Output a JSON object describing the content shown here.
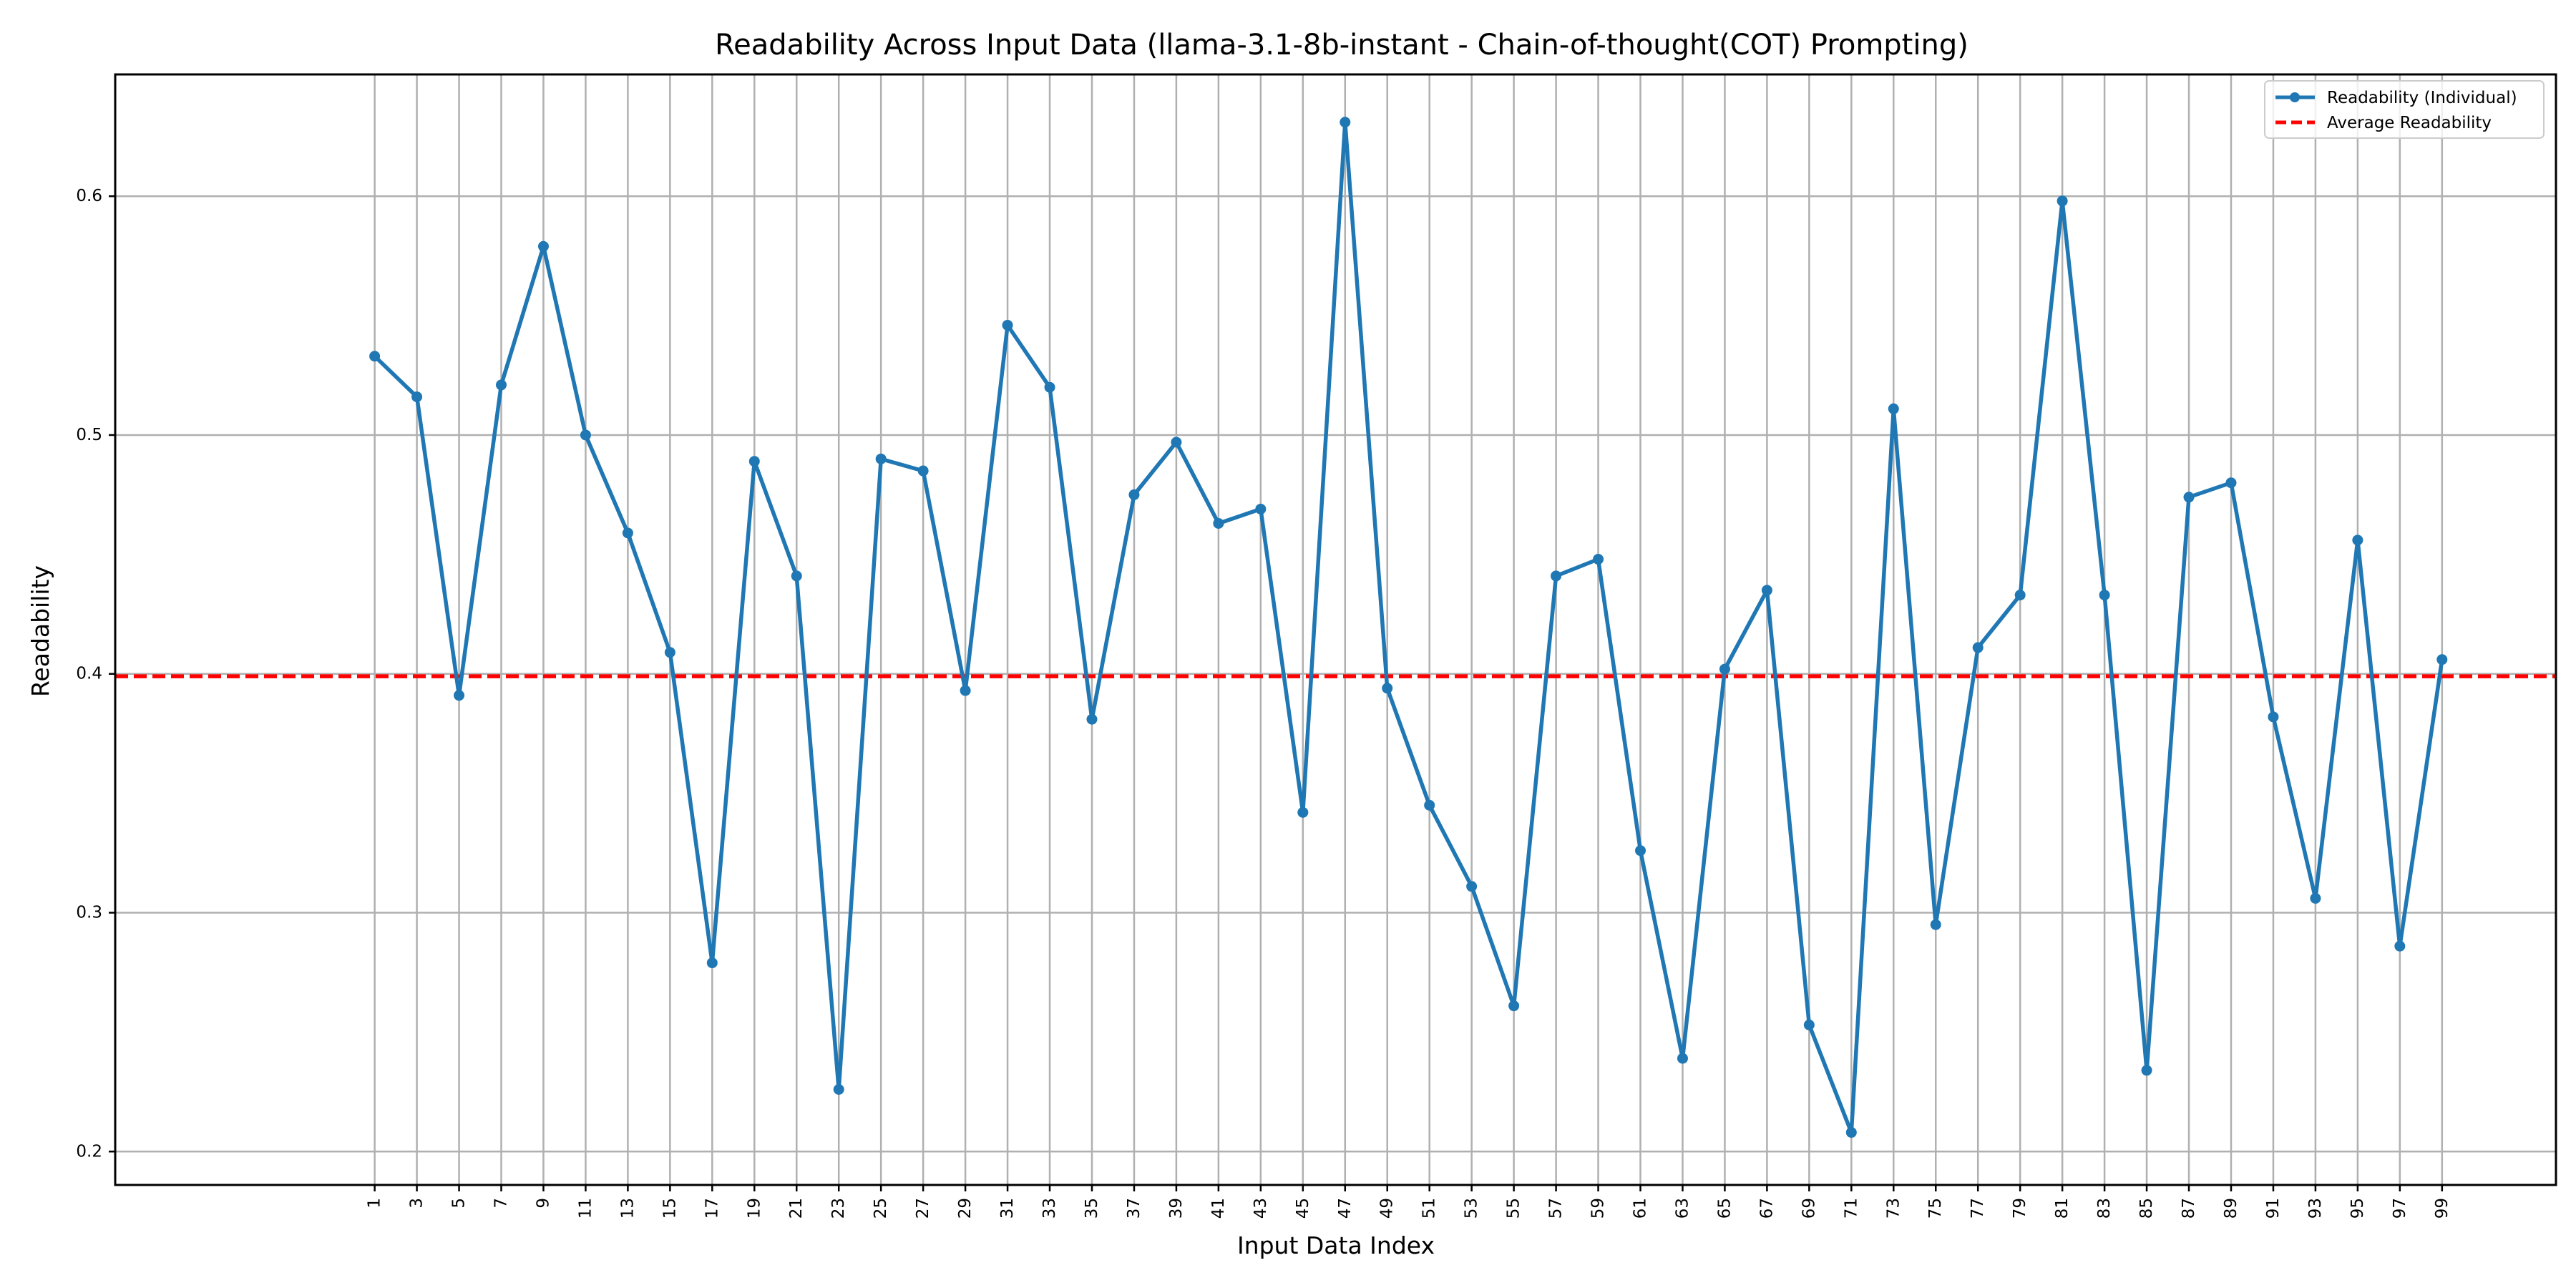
{
  "chart_data": {
    "type": "line",
    "title": "Readability Across Input Data (llama-3.1-8b-instant - Chain-of-thought(COT) Prompting)",
    "xlabel": "Input Data Index",
    "ylabel": "Readability",
    "x": [
      1,
      3,
      5,
      7,
      9,
      11,
      13,
      15,
      17,
      19,
      21,
      23,
      25,
      27,
      29,
      31,
      33,
      35,
      37,
      39,
      41,
      43,
      45,
      47,
      49,
      51,
      53,
      55,
      57,
      59,
      61,
      63,
      65,
      67,
      69,
      71,
      73,
      75,
      77,
      79,
      81,
      83,
      85,
      87,
      89,
      91,
      93,
      95,
      97,
      99
    ],
    "xticks": [
      "1",
      "3",
      "5",
      "7",
      "9",
      "11",
      "13",
      "15",
      "17",
      "19",
      "21",
      "23",
      "25",
      "27",
      "29",
      "31",
      "33",
      "35",
      "37",
      "39",
      "41",
      "43",
      "45",
      "47",
      "49",
      "51",
      "53",
      "55",
      "57",
      "59",
      "61",
      "63",
      "65",
      "67",
      "69",
      "71",
      "73",
      "75",
      "77",
      "79",
      "81",
      "83",
      "85",
      "87",
      "89",
      "91",
      "93",
      "95",
      "97",
      "99"
    ],
    "yticks": [
      "0.2",
      "0.3",
      "0.4",
      "0.5",
      "0.6"
    ],
    "ylim": [
      0.186,
      0.651
    ],
    "xlim": [
      -11.3,
      104.4
    ],
    "grid": true,
    "legend_position": "top-right",
    "series": [
      {
        "name": "Readability (Individual)",
        "color": "#1f77b4",
        "style": "solid",
        "marker": "circle",
        "values": [
          0.533,
          0.516,
          0.391,
          0.521,
          0.579,
          0.5,
          0.459,
          0.409,
          0.279,
          0.489,
          0.441,
          0.226,
          0.49,
          0.485,
          0.393,
          0.546,
          0.52,
          0.381,
          0.475,
          0.497,
          0.463,
          0.469,
          0.342,
          0.631,
          0.394,
          0.345,
          0.311,
          0.261,
          0.441,
          0.448,
          0.326,
          0.239,
          0.402,
          0.435,
          0.253,
          0.208,
          0.511,
          0.295,
          0.411,
          0.433,
          0.598,
          0.433,
          0.234,
          0.474,
          0.48,
          0.382,
          0.306,
          0.456,
          0.286,
          0.406
        ]
      },
      {
        "name": "Average Readability",
        "color": "#ff0000",
        "style": "dashed",
        "value": 0.399
      }
    ]
  }
}
